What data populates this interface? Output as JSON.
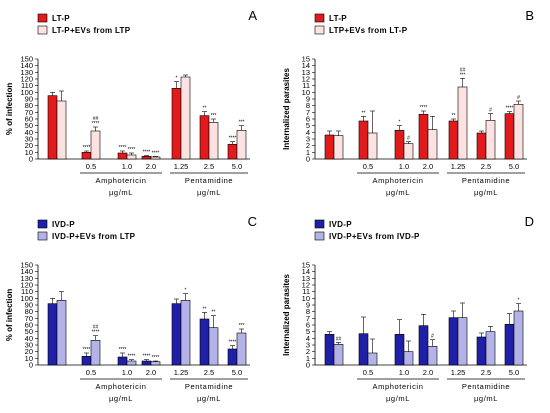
{
  "chart_data": [
    {
      "type": "bar",
      "panel_letter": "A",
      "ylabel": "% of infection",
      "ylim": [
        0,
        150
      ],
      "yticks": [
        0,
        10,
        20,
        30,
        40,
        50,
        60,
        70,
        80,
        90,
        100,
        110,
        120,
        130,
        140,
        150
      ],
      "categories": [
        "",
        "0.5",
        "1.0",
        "2.0",
        "1.25",
        "2.5",
        "5.0"
      ],
      "groups": [
        {
          "name": "Amphotericin",
          "unit": "µg/mL",
          "categories": [
            1,
            2,
            3
          ]
        },
        {
          "name": "Pentamidine",
          "unit": "µg/mL",
          "categories": [
            4,
            5,
            6
          ]
        }
      ],
      "series": [
        {
          "name": "LT-P",
          "color": "#e31a1c",
          "values": [
            95,
            10,
            9,
            4,
            106,
            65,
            22
          ],
          "errors": [
            5,
            2,
            3,
            1,
            10,
            6,
            4
          ]
        },
        {
          "name": "LT-P+EVs from LTP",
          "color": "#fde2e2",
          "values": [
            87,
            42,
            6,
            3,
            123,
            55,
            43
          ],
          "errors": [
            15,
            6,
            3,
            1,
            3,
            5,
            7
          ]
        }
      ],
      "significance": [
        {
          "category": 1,
          "series": 0,
          "marks": [
            "****"
          ]
        },
        {
          "category": 1,
          "series": 1,
          "marks": [
            "##",
            "****"
          ]
        },
        {
          "category": 2,
          "series": 0,
          "marks": [
            "****"
          ]
        },
        {
          "category": 2,
          "series": 1,
          "marks": [
            "****"
          ]
        },
        {
          "category": 3,
          "series": 0,
          "marks": [
            "****"
          ]
        },
        {
          "category": 3,
          "series": 1,
          "marks": [
            "****"
          ]
        },
        {
          "category": 4,
          "series": 0,
          "marks": [
            "*"
          ]
        },
        {
          "category": 5,
          "series": 0,
          "marks": [
            "**"
          ]
        },
        {
          "category": 5,
          "series": 1,
          "marks": [
            "***"
          ]
        },
        {
          "category": 6,
          "series": 0,
          "marks": [
            "****"
          ]
        },
        {
          "category": 6,
          "series": 1,
          "marks": [
            "***"
          ]
        }
      ]
    },
    {
      "type": "bar",
      "panel_letter": "B",
      "ylabel": "Internalized parasites",
      "ylim": [
        0,
        15
      ],
      "yticks": [
        0,
        1,
        2,
        3,
        4,
        5,
        6,
        7,
        8,
        9,
        10,
        11,
        12,
        13,
        14,
        15
      ],
      "categories": [
        "",
        "0.5",
        "1.0",
        "2.0",
        "1.25",
        "2.5",
        "5.0"
      ],
      "groups": [
        {
          "name": "Amphotericin",
          "unit": "µg/mL",
          "categories": [
            1,
            2,
            3
          ]
        },
        {
          "name": "Pentamidine",
          "unit": "µg/mL",
          "categories": [
            4,
            5,
            6
          ]
        }
      ],
      "series": [
        {
          "name": "LT-P",
          "color": "#e31a1c",
          "values": [
            3.6,
            5.7,
            4.3,
            6.7,
            5.7,
            3.9,
            6.8
          ],
          "errors": [
            0.6,
            0.7,
            0.7,
            0.5,
            0.3,
            0.3,
            0.3
          ]
        },
        {
          "name": "LTP+EVs from LT-P",
          "color": "#fde2e2",
          "values": [
            3.5,
            3.9,
            2.3,
            4.4,
            10.8,
            5.8,
            8.2
          ],
          "errors": [
            0.7,
            3.3,
            0.3,
            2.0,
            1.3,
            1.0,
            0.5
          ]
        }
      ],
      "significance": [
        {
          "category": 1,
          "series": 0,
          "marks": [
            "**"
          ]
        },
        {
          "category": 2,
          "series": 0,
          "marks": [
            "*"
          ]
        },
        {
          "category": 2,
          "series": 1,
          "marks": [
            "#"
          ]
        },
        {
          "category": 3,
          "series": 0,
          "marks": [
            "****"
          ]
        },
        {
          "category": 4,
          "series": 0,
          "marks": [
            "**"
          ]
        },
        {
          "category": 4,
          "series": 1,
          "marks": [
            "##",
            "***"
          ]
        },
        {
          "category": 5,
          "series": 1,
          "marks": [
            "#"
          ]
        },
        {
          "category": 6,
          "series": 0,
          "marks": [
            "****"
          ]
        },
        {
          "category": 6,
          "series": 1,
          "marks": [
            "#"
          ]
        }
      ]
    },
    {
      "type": "bar",
      "panel_letter": "C",
      "ylabel": "% of infection",
      "ylim": [
        0,
        150
      ],
      "yticks": [
        0,
        10,
        20,
        30,
        40,
        50,
        60,
        70,
        80,
        90,
        100,
        110,
        120,
        130,
        140,
        150
      ],
      "categories": [
        "",
        "0.5",
        "1.0",
        "2.0",
        "1.25",
        "2.5",
        "5.0"
      ],
      "groups": [
        {
          "name": "Amphotericin",
          "unit": "µg/mL",
          "categories": [
            1,
            2,
            3
          ]
        },
        {
          "name": "Pentamidine",
          "unit": "µg/mL",
          "categories": [
            4,
            5,
            6
          ]
        }
      ],
      "series": [
        {
          "name": "IVD-P",
          "color": "#1f1fa8",
          "values": [
            92,
            13,
            12,
            6,
            92,
            69,
            24
          ],
          "errors": [
            8,
            5,
            6,
            2,
            7,
            10,
            5
          ]
        },
        {
          "name": "IVD-P+EVs from LTP",
          "color": "#b3b3e8",
          "values": [
            97,
            37,
            6,
            5,
            97,
            56,
            48
          ],
          "errors": [
            13,
            7,
            2,
            1,
            10,
            18,
            6
          ]
        }
      ],
      "significance": [
        {
          "category": 1,
          "series": 0,
          "marks": [
            "****"
          ]
        },
        {
          "category": 1,
          "series": 1,
          "marks": [
            "##",
            "****"
          ]
        },
        {
          "category": 2,
          "series": 0,
          "marks": [
            "****"
          ]
        },
        {
          "category": 2,
          "series": 1,
          "marks": [
            "****"
          ]
        },
        {
          "category": 3,
          "series": 0,
          "marks": [
            "****"
          ]
        },
        {
          "category": 3,
          "series": 1,
          "marks": [
            "****"
          ]
        },
        {
          "category": 4,
          "series": 1,
          "marks": [
            "*"
          ]
        },
        {
          "category": 5,
          "series": 0,
          "marks": [
            "**"
          ]
        },
        {
          "category": 5,
          "series": 1,
          "marks": [
            "**"
          ]
        },
        {
          "category": 6,
          "series": 0,
          "marks": [
            "****"
          ]
        },
        {
          "category": 6,
          "series": 1,
          "marks": [
            "***"
          ]
        }
      ]
    },
    {
      "type": "bar",
      "panel_letter": "D",
      "ylabel": "Internalized parasites",
      "ylim": [
        0,
        15
      ],
      "yticks": [
        0,
        1,
        2,
        3,
        4,
        5,
        6,
        7,
        8,
        9,
        10,
        11,
        12,
        13,
        14,
        15
      ],
      "categories": [
        "",
        "0.5",
        "1.0",
        "2.0",
        "1.25",
        "2.5",
        "5.0"
      ],
      "groups": [
        {
          "name": "Amphotericin",
          "unit": "µg/mL",
          "categories": [
            1,
            2,
            3
          ]
        },
        {
          "name": "Pentamidine",
          "unit": "µg/mL",
          "categories": [
            4,
            5,
            6
          ]
        }
      ],
      "series": [
        {
          "name": "IVD-P",
          "color": "#1f1fa8",
          "values": [
            4.6,
            4.7,
            4.6,
            5.9,
            7.1,
            4.2,
            6.1
          ],
          "errors": [
            0.4,
            2.5,
            2.2,
            1.7,
            1.0,
            0.6,
            1.6
          ]
        },
        {
          "name": "IVD-P+EVs from IVD-P",
          "color": "#b3b3e8",
          "values": [
            3.1,
            1.8,
            2.0,
            2.8,
            7.1,
            5.0,
            8.1
          ],
          "errors": [
            0.3,
            2.1,
            1.6,
            1.0,
            2.2,
            0.8,
            1.1
          ]
        }
      ],
      "significance": [
        {
          "category": 0,
          "series": 1,
          "marks": [
            "##"
          ]
        },
        {
          "category": 3,
          "series": 1,
          "marks": [
            "#"
          ]
        },
        {
          "category": 6,
          "series": 1,
          "marks": [
            "*"
          ]
        }
      ]
    }
  ]
}
